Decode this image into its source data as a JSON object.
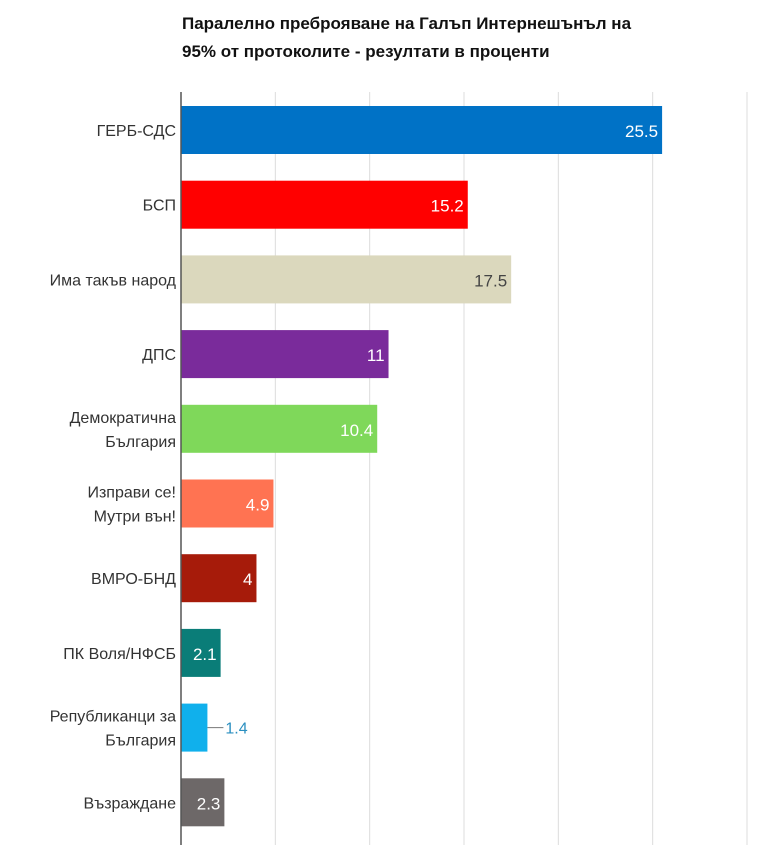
{
  "chart_data": {
    "type": "bar",
    "orientation": "horizontal",
    "title_lines": [
      "Паралелно преброяване на Галъп Интернешънъл на",
      "95% от протоколите - резултати в проценти"
    ],
    "categories": [
      [
        "ГЕРБ-СДС"
      ],
      [
        "БСП"
      ],
      [
        "Има такъв народ"
      ],
      [
        "ДПС"
      ],
      [
        "Демократична",
        "България"
      ],
      [
        "Изправи се!",
        "Мутри вън!"
      ],
      [
        "ВМРО-БНД"
      ],
      [
        "ПК Воля/НФСБ"
      ],
      [
        "Републиканци за",
        "България"
      ],
      [
        "Възраждане"
      ]
    ],
    "values": [
      25.5,
      15.2,
      17.5,
      11,
      10.4,
      4.9,
      4,
      2.1,
      1.4,
      2.3
    ],
    "value_labels": [
      "25.5",
      "15.2",
      "17.5",
      "11",
      "10.4",
      "4.9",
      "4",
      "2.1",
      "1.4",
      "2.3"
    ],
    "colors": [
      "#0072c6",
      "#ff0000",
      "#dbd8bd",
      "#7a2b9b",
      "#7fd85a",
      "#ff7352",
      "#a61b0a",
      "#0a7d78",
      "#10b0ec",
      "#6d6868"
    ],
    "label_colors": [
      "#ffffff",
      "#ffffff",
      "#444444",
      "#ffffff",
      "#ffffff",
      "#ffffff",
      "#ffffff",
      "#ffffff",
      "#2a8fc0",
      "#ffffff"
    ],
    "xlim": [
      0,
      30
    ],
    "grid_step": 5,
    "grid": true,
    "xlabel": "",
    "ylabel": ""
  }
}
